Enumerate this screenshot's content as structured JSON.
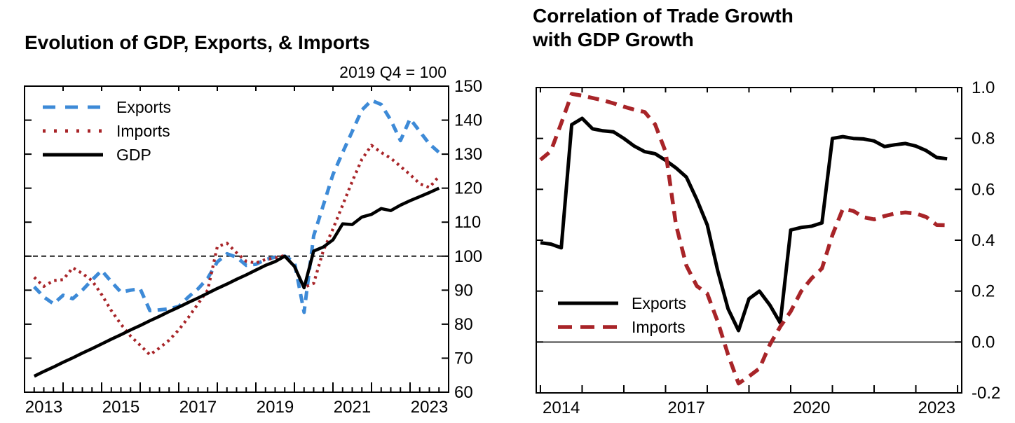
{
  "page": {
    "background": "#ffffff"
  },
  "chart_data": [
    {
      "type": "line",
      "title": "Evolution of GDP, Exports, & Imports",
      "title_lines": [
        "Evolution of GDP, Exports, & Imports"
      ],
      "units_note": "2019 Q4 = 100",
      "x_range": [
        2013.0,
        2024.0
      ],
      "y_range": [
        60,
        150
      ],
      "y_ticks": [
        60,
        70,
        80,
        90,
        100,
        110,
        120,
        130,
        140,
        150
      ],
      "y_tick_labels": [
        "60",
        "70",
        "80",
        "90",
        "100",
        "110",
        "120",
        "130",
        "140",
        "150"
      ],
      "x_label_years": [
        2013,
        2015,
        2017,
        2019,
        2021,
        2023
      ],
      "x_tick_labels": [
        "2013",
        "2015",
        "2017",
        "2019",
        "2021",
        "2023"
      ],
      "x_start": 2013.25,
      "x_step": 0.25,
      "reference_line": 100,
      "reference_line_style": "dashed",
      "grid": "off",
      "legend_position": "top-left",
      "series": [
        {
          "name": "Exports",
          "color": "#3d8ad7",
          "style": "dashed",
          "values": [
            91,
            88,
            86,
            88.5,
            87.5,
            90,
            93,
            95.8,
            92.5,
            89.4,
            90,
            90.4,
            84,
            84.2,
            84.5,
            85.2,
            88,
            90.4,
            93.5,
            98.3,
            100.7,
            99.7,
            97.3,
            97.6,
            99,
            99.7,
            100,
            98.3,
            83.5,
            106,
            115,
            124,
            130.5,
            136.7,
            143,
            145.8,
            144.6,
            140,
            134,
            140.4,
            136.7,
            133,
            130.5
          ]
        },
        {
          "name": "Imports",
          "color": "#a82428",
          "style": "dotted",
          "values": [
            93.8,
            91.1,
            92.8,
            93.1,
            96.6,
            94.9,
            92.8,
            88.7,
            84,
            80,
            76.5,
            73.8,
            71,
            73,
            75.3,
            78.3,
            82,
            86,
            90,
            102.8,
            103.8,
            101,
            98.5,
            98,
            99,
            99.5,
            100.2,
            96.9,
            90.8,
            92,
            101.7,
            108,
            115,
            122,
            128.5,
            132.6,
            130.5,
            128.8,
            126.4,
            124,
            121.3,
            120.2,
            123.5
          ]
        },
        {
          "name": "GDP",
          "color": "#000000",
          "style": "solid",
          "values": [
            64.7,
            66.1,
            67.4,
            68.8,
            70.1,
            71.5,
            72.8,
            74.2,
            75.6,
            76.9,
            78.3,
            79.6,
            81,
            82.3,
            83.7,
            85,
            86.4,
            87.7,
            89.1,
            90.5,
            91.8,
            93.2,
            94.5,
            95.9,
            97.3,
            98.4,
            100,
            97,
            90.7,
            101.5,
            102.7,
            104.8,
            109.5,
            109.3,
            111.5,
            112.3,
            114,
            113.4,
            115,
            116.3,
            117.5,
            118.7,
            120
          ]
        }
      ]
    },
    {
      "type": "line",
      "title": "Correlation of Trade Growth with GDP Growth",
      "title_lines": [
        "Correlation of Trade Growth",
        "with GDP Growth"
      ],
      "units_note": "",
      "x_range": [
        2013.9,
        2024.1
      ],
      "y_range": [
        -0.2,
        1.0
      ],
      "y_ticks": [
        -0.2,
        0.0,
        0.2,
        0.4,
        0.6,
        0.8,
        1.0
      ],
      "y_tick_labels": [
        "-0.2",
        "0.0",
        "0.2",
        "0.4",
        "0.6",
        "0.8",
        "1.0"
      ],
      "x_label_years": [
        2014,
        2017,
        2020,
        2023
      ],
      "x_tick_labels": [
        "2014",
        "2017",
        "2020",
        "2023"
      ],
      "x_start": 2014.0,
      "x_step": 0.25,
      "reference_line": 0,
      "reference_line_style": "solid",
      "grid": "off",
      "legend_position": "bottom-left",
      "series": [
        {
          "name": "Exports",
          "color": "#000000",
          "style": "solid",
          "values": [
            0.39,
            0.385,
            0.37,
            0.854,
            0.879,
            0.838,
            0.83,
            0.826,
            0.8,
            0.77,
            0.748,
            0.74,
            0.714,
            0.684,
            0.648,
            0.56,
            0.46,
            0.28,
            0.13,
            0.045,
            0.17,
            0.2,
            0.145,
            0.075,
            0.44,
            0.45,
            0.455,
            0.468,
            0.8,
            0.807,
            0.8,
            0.798,
            0.79,
            0.768,
            0.775,
            0.78,
            0.77,
            0.752,
            0.725,
            0.72
          ]
        },
        {
          "name": "Imports",
          "color": "#a82428",
          "style": "dashed",
          "values": [
            0.716,
            0.75,
            0.86,
            0.975,
            0.968,
            0.959,
            0.95,
            0.938,
            0.925,
            0.913,
            0.904,
            0.855,
            0.748,
            0.46,
            0.3,
            0.22,
            0.19,
            0.08,
            -0.05,
            -0.163,
            -0.135,
            -0.104,
            -0.01,
            0.06,
            0.12,
            0.199,
            0.25,
            0.289,
            0.42,
            0.523,
            0.515,
            0.49,
            0.482,
            0.495,
            0.505,
            0.509,
            0.505,
            0.491,
            0.46,
            0.459
          ]
        }
      ]
    }
  ]
}
